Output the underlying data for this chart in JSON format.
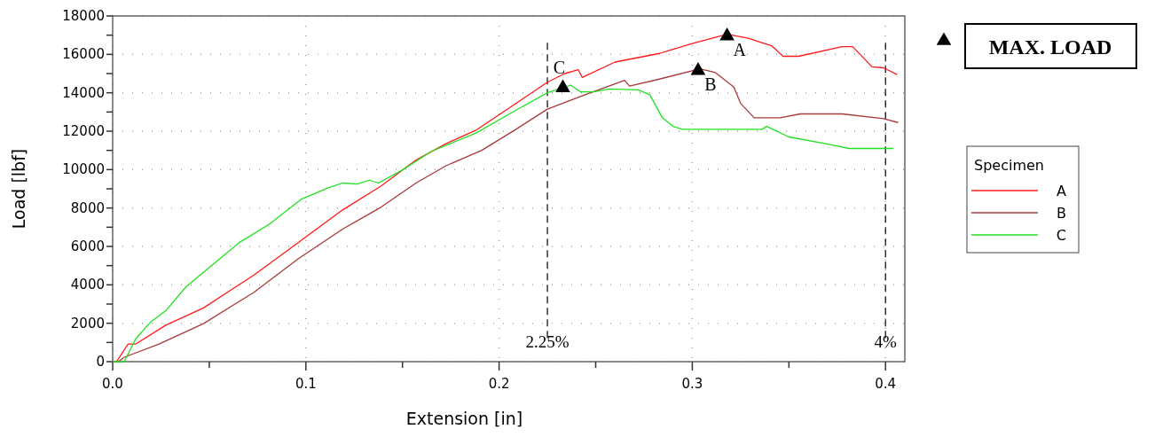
{
  "chart_data": {
    "type": "line",
    "xlabel": "Extension [in]",
    "ylabel": "Load [lbf]",
    "legend_title": "Specimen",
    "legend": "right",
    "grid": true,
    "xlim": [
      0,
      0.41
    ],
    "xticks": [
      {
        "value": 0,
        "label": "0.0"
      },
      {
        "value": 0.05,
        "label": null
      },
      0.1,
      {
        "value": 0.15,
        "label": null
      },
      0.2,
      {
        "value": 0.25,
        "label": null
      },
      0.3,
      {
        "value": 0.35,
        "label": null
      },
      0.4
    ],
    "ylim": [
      0,
      18000
    ],
    "yticks": [
      0,
      {
        "value": 1000,
        "label": null
      },
      2000,
      {
        "value": 3000,
        "label": null
      },
      4000,
      {
        "value": 5000,
        "label": null
      },
      6000,
      {
        "value": 7000,
        "label": null
      },
      8000,
      {
        "value": 9000,
        "label": null
      },
      10000,
      {
        "value": 11000,
        "label": null
      },
      12000,
      {
        "value": 13000,
        "label": null
      },
      14000,
      {
        "value": 15000,
        "label": null
      },
      16000,
      {
        "value": 17000,
        "label": null
      },
      18000
    ],
    "series": [
      {
        "name": "A",
        "color": "#ff1a1a",
        "x": [
          0,
          0.002,
          0.008,
          0.012,
          0.0275,
          0.047,
          0.073,
          0.096,
          0.119,
          0.139,
          0.157,
          0.1725,
          0.188,
          0.208,
          0.225,
          0.234,
          0.241,
          0.243,
          0.26,
          0.283,
          0.2995,
          0.318,
          0.3285,
          0.341,
          0.347,
          0.355,
          0.3775,
          0.383,
          0.393,
          0.399,
          0.406
        ],
        "values": [
          0,
          0,
          920,
          920,
          1900,
          2800,
          4500,
          6200,
          7900,
          9150,
          10500,
          11350,
          12050,
          13400,
          14550,
          15000,
          15200,
          14800,
          15600,
          16050,
          16550,
          17050,
          16850,
          16450,
          15900,
          15900,
          16400,
          16400,
          15350,
          15300,
          14950
        ]
      },
      {
        "name": "B",
        "color": "#a83a3a",
        "x": [
          0,
          0.003,
          0.006,
          0.024,
          0.047,
          0.073,
          0.096,
          0.119,
          0.139,
          0.157,
          0.1725,
          0.191,
          0.208,
          0.225,
          0.2445,
          0.265,
          0.2675,
          0.2825,
          0.304,
          0.312,
          0.3215,
          0.325,
          0.332,
          0.3455,
          0.356,
          0.3775,
          0.399,
          0.4065
        ],
        "values": [
          0,
          0,
          230,
          920,
          1980,
          3600,
          5350,
          6900,
          8050,
          9300,
          10200,
          11000,
          12050,
          13150,
          13900,
          14650,
          14350,
          14700,
          15250,
          15050,
          14300,
          13450,
          12700,
          12700,
          12900,
          12900,
          12650,
          12450
        ]
      },
      {
        "name": "C",
        "color": "#22e022",
        "x": [
          0,
          0.006,
          0.012,
          0.0195,
          0.0275,
          0.038,
          0.05,
          0.0655,
          0.081,
          0.0975,
          0.1115,
          0.119,
          0.1265,
          0.133,
          0.1375,
          0.1495,
          0.165,
          0.188,
          0.208,
          0.225,
          0.237,
          0.242,
          0.249,
          0.257,
          0.272,
          0.278,
          0.2845,
          0.29,
          0.295,
          0.336,
          0.3385,
          0.35,
          0.3715,
          0.381,
          0.404
        ],
        "values": [
          0,
          0,
          1200,
          2050,
          2650,
          3900,
          4900,
          6200,
          7150,
          8450,
          9050,
          9300,
          9250,
          9450,
          9300,
          9950,
          10950,
          11900,
          13050,
          14000,
          14400,
          14050,
          14050,
          14200,
          14150,
          13900,
          12700,
          12250,
          12100,
          12100,
          12250,
          11700,
          11300,
          11100,
          11100
        ]
      },
      {
        "name": "MAX. LOAD",
        "type": "scatter",
        "marker": "triangle",
        "color": "#000000",
        "x": [
          0.233,
          0.303,
          0.318
        ],
        "values": [
          14350,
          15250,
          17050
        ]
      }
    ],
    "ref_lines": [
      {
        "axis": "x",
        "value": 0.225,
        "color": "#000000",
        "line_style": "dashed"
      },
      {
        "axis": "x",
        "value": 0.4,
        "color": "#000000",
        "line_style": "dashed"
      }
    ],
    "annotations": [
      "C",
      "B",
      "A",
      "2.25%",
      "4%"
    ]
  }
}
